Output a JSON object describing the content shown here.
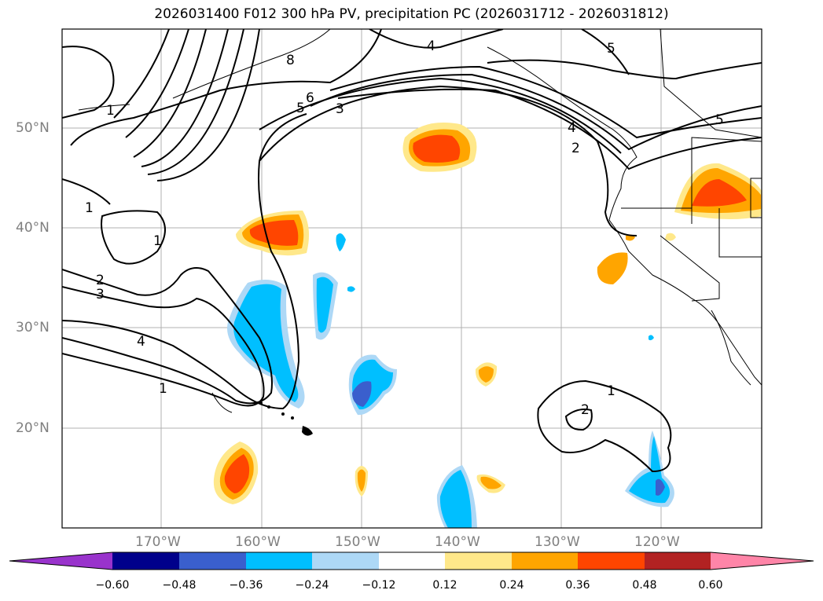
{
  "title": "2026031400 F012 300 hPa PV, precipitation PC (2026031712 - 2026031812)",
  "lat_labels": [
    "50°N",
    "40°N",
    "30°N",
    "20°N"
  ],
  "lon_labels": [
    "170°W",
    "160°W",
    "150°W",
    "140°W",
    "130°W",
    "120°W"
  ],
  "contour_labels": [
    "1",
    "1",
    "1",
    "1",
    "1",
    "2",
    "2",
    "3",
    "3",
    "4",
    "4",
    "4",
    "5",
    "5",
    "5",
    "6",
    "8",
    "2"
  ],
  "colorbar": {
    "ticks": [
      "−0.60",
      "−0.48",
      "−0.36",
      "−0.24",
      "−0.12",
      "0.12",
      "0.24",
      "0.36",
      "0.48",
      "0.60"
    ],
    "colors": [
      "#9933cc",
      "#00008b",
      "#3a5fcd",
      "#00bfff",
      "#add8f6",
      "#ffffff",
      "#ffe88a",
      "#ffa500",
      "#ff4500",
      "#b22222",
      "#ff85a8"
    ]
  }
}
